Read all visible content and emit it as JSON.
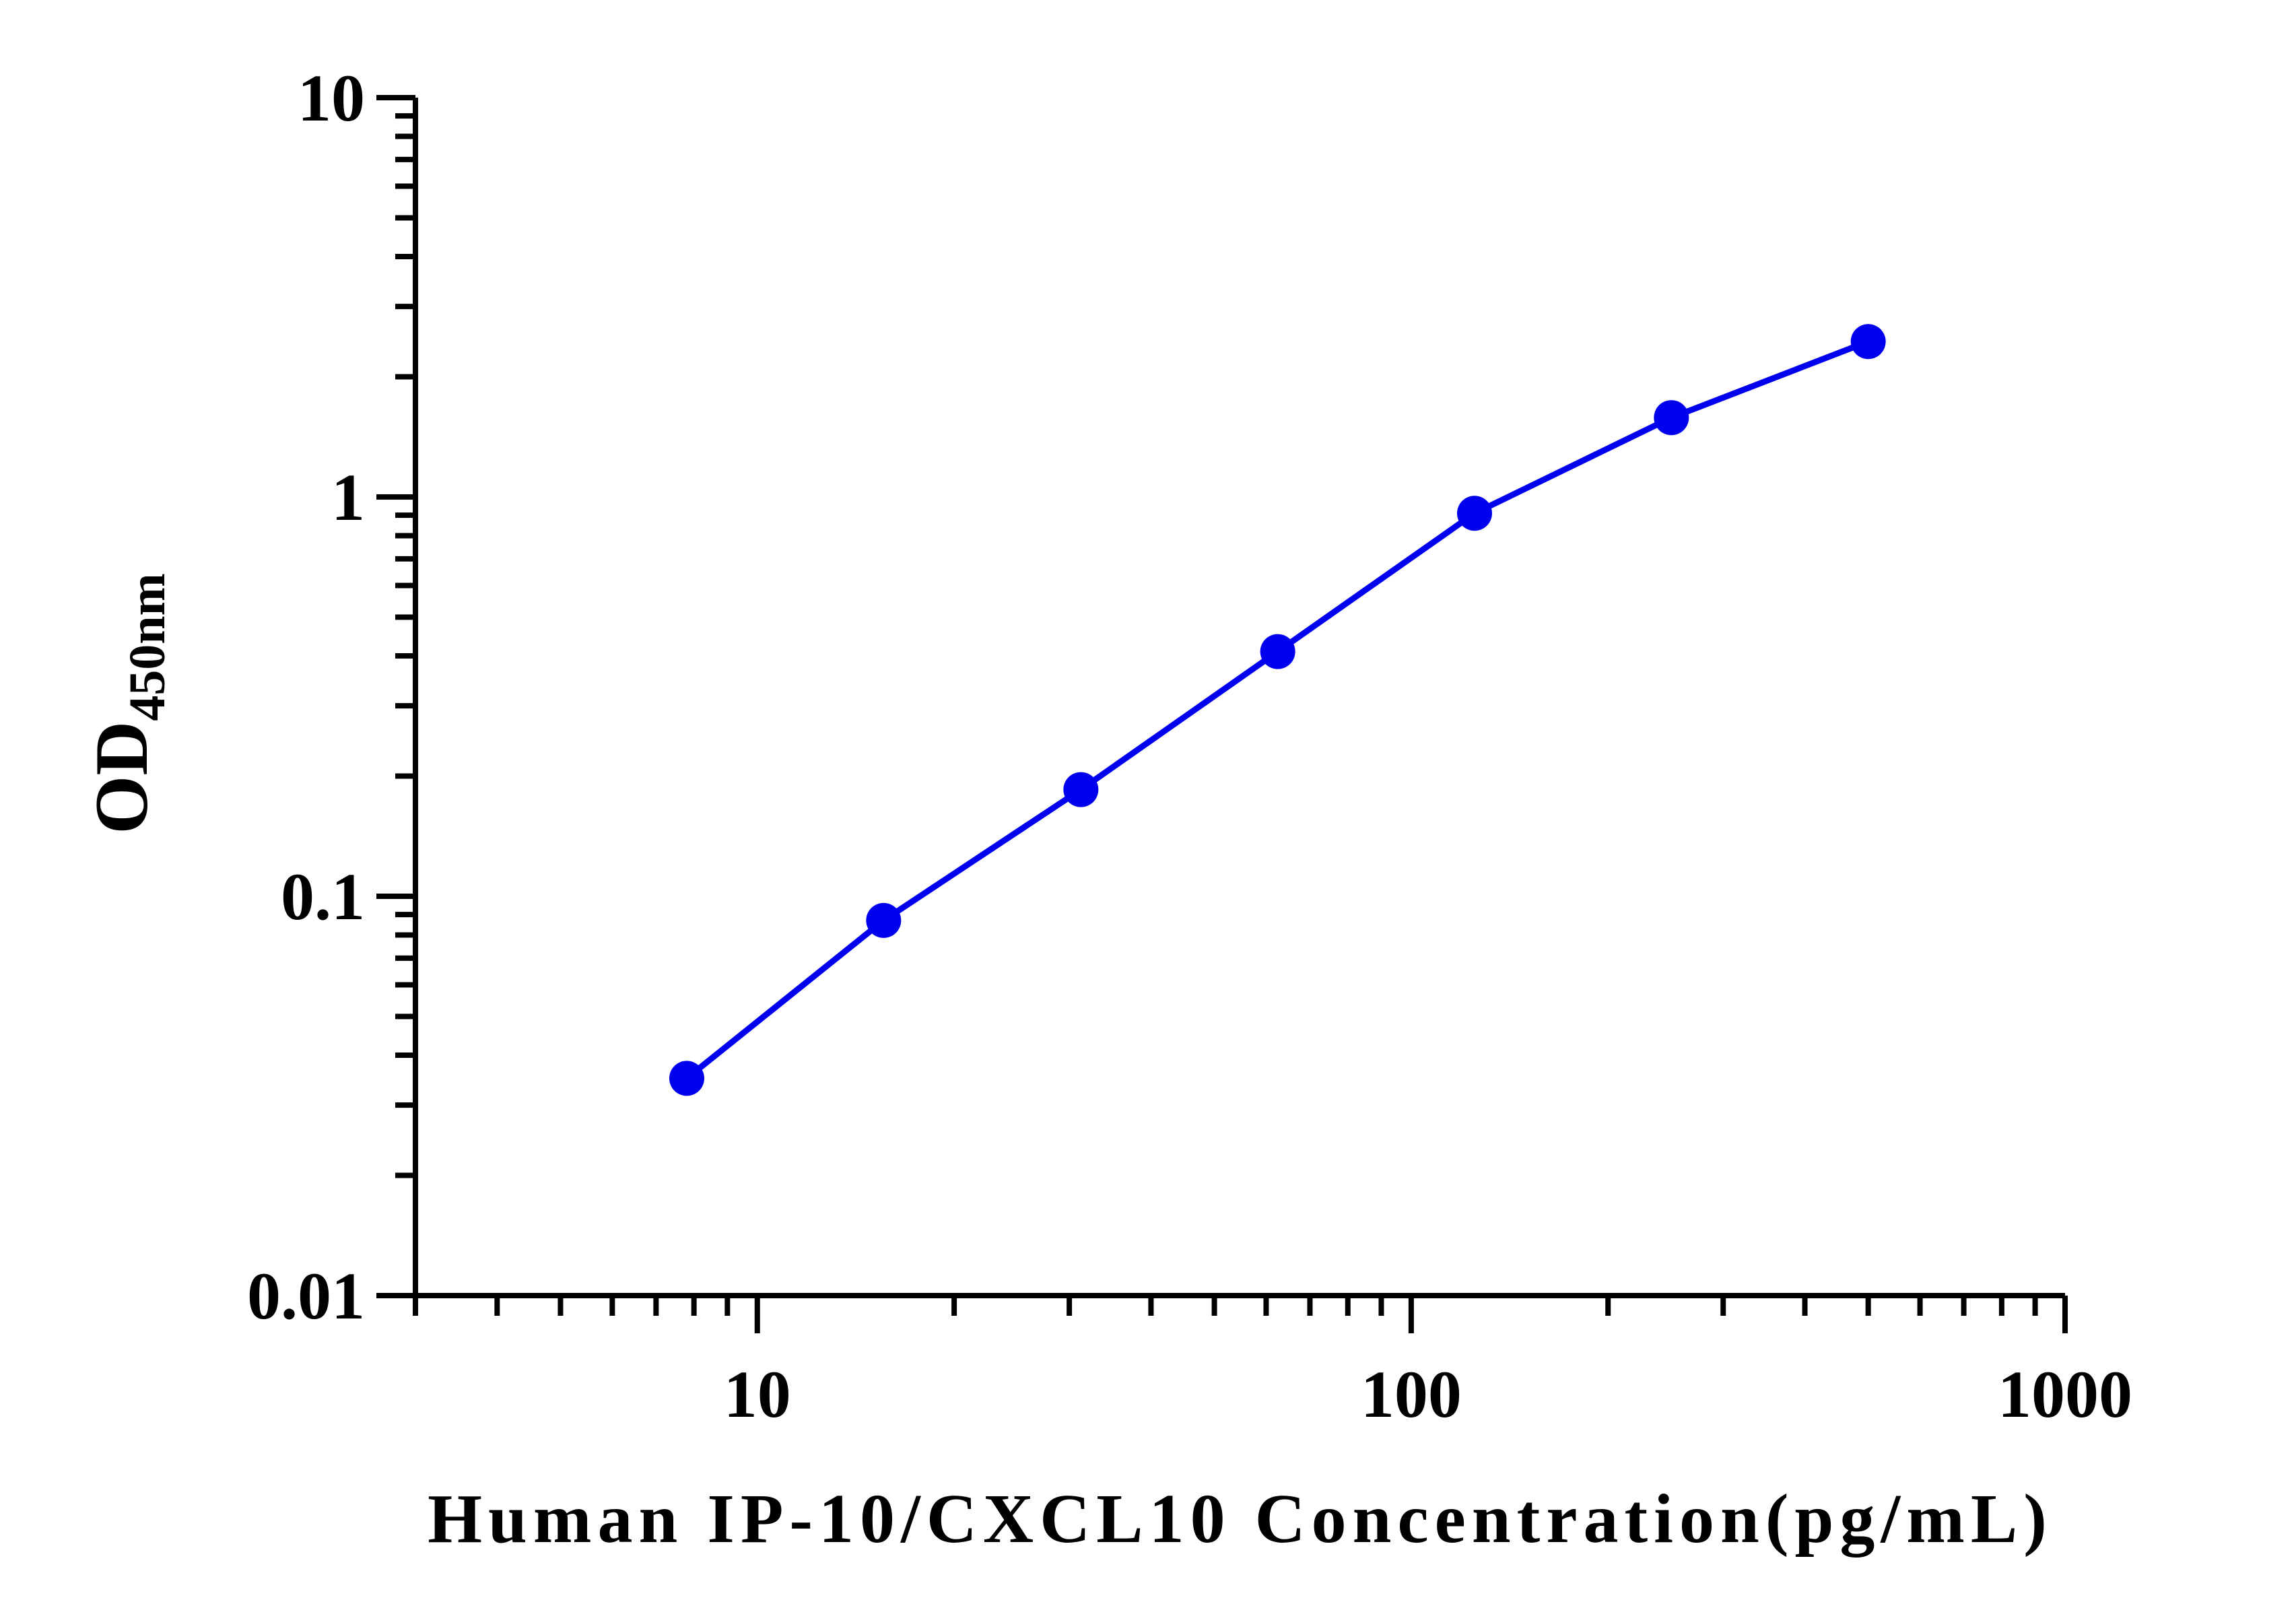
{
  "chart_data": {
    "type": "line",
    "title": "",
    "xlabel": "Human IP-10/CXCL10 Concentration(pg/mL)",
    "ylabel": {
      "main": "OD",
      "subscript": "450nm"
    },
    "xscale": "log",
    "yscale": "log",
    "xlim": [
      3,
      1000
    ],
    "ylim": [
      0.01,
      10
    ],
    "x_tick_labels": [
      "10",
      "100",
      "1000"
    ],
    "y_tick_labels": [
      "0.01",
      "0.1",
      "1",
      "10"
    ],
    "grid": false,
    "legend": "none",
    "series": [
      {
        "color": "#0000ee",
        "x": [
          7.8,
          15.6,
          31.25,
          62.5,
          125,
          250,
          500
        ],
        "y": [
          0.035,
          0.087,
          0.185,
          0.41,
          0.91,
          1.58,
          2.45
        ]
      }
    ]
  }
}
